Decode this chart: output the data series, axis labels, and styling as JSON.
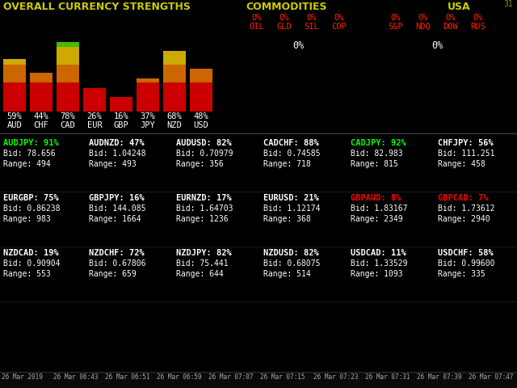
{
  "bg_color": "#000000",
  "title_left": "OVERALL CURRENCY STRENGTHS",
  "title_mid": "COMMODITIES",
  "title_right": "USA",
  "title_color": "#cccc00",
  "bar_currencies": [
    "AUD",
    "CHF",
    "CAD",
    "EUR",
    "GBP",
    "JPY",
    "NZD",
    "USD"
  ],
  "bar_values": [
    59,
    44,
    78,
    26,
    16,
    37,
    68,
    48
  ],
  "commodities_labels": [
    "OIL",
    "GLD",
    "SIL",
    "COP"
  ],
  "usa_labels": [
    "S&P",
    "NDQ",
    "DOW",
    "RUS"
  ],
  "pairs_data": [
    {
      "label": "AUDJPY: 91%",
      "bid": "Bid: 78.656",
      "range": "Range: 494",
      "color": "#00ff00"
    },
    {
      "label": "AUDNZD: 47%",
      "bid": "Bid: 1.04248",
      "range": "Range: 493",
      "color": "#ffffff"
    },
    {
      "label": "AUDUSD: 82%",
      "bid": "Bid: 0.70979",
      "range": "Range: 356",
      "color": "#ffffff"
    },
    {
      "label": "CADCHF: 88%",
      "bid": "Bid: 0.74585",
      "range": "Range: 718",
      "color": "#ffffff"
    },
    {
      "label": "CADJPY: 92%",
      "bid": "Bid: 82.983",
      "range": "Range: 815",
      "color": "#00ff00"
    },
    {
      "label": "CHFJPY: 56%",
      "bid": "Bid: 111.251",
      "range": "Range: 458",
      "color": "#ffffff"
    },
    {
      "label": "EURGBP: 75%",
      "bid": "Bid: 0.86238",
      "range": "Range: 983",
      "color": "#ffffff"
    },
    {
      "label": "GBPJPY: 16%",
      "bid": "Bid: 144.085",
      "range": "Range: 1664",
      "color": "#ffffff"
    },
    {
      "label": "EURNZD: 17%",
      "bid": "Bid: 1.64703",
      "range": "Range: 1236",
      "color": "#ffffff"
    },
    {
      "label": "EURUSD: 21%",
      "bid": "Bid: 1.12174",
      "range": "Range: 368",
      "color": "#ffffff"
    },
    {
      "label": "GBPAUD: 8%",
      "bid": "Bid: 1.83167",
      "range": "Range: 2349",
      "color": "#ff0000"
    },
    {
      "label": "GBPCAD: 7%",
      "bid": "Bid: 1.73612",
      "range": "Range: 2940",
      "color": "#ff0000"
    },
    {
      "label": "NZDCAD: 19%",
      "bid": "Bid: 0.90904",
      "range": "Range: 553",
      "color": "#ffffff"
    },
    {
      "label": "NZDCHF: 72%",
      "bid": "Bid: 0.67806",
      "range": "Range: 659",
      "color": "#ffffff"
    },
    {
      "label": "NZDJPY: 82%",
      "bid": "Bid: 75.441",
      "range": "Range: 644",
      "color": "#ffffff"
    },
    {
      "label": "NZDUSD: 82%",
      "bid": "Bid: 0.68075",
      "range": "Range: 514",
      "color": "#ffffff"
    },
    {
      "label": "USDCAD: 11%",
      "bid": "Bid: 1.33529",
      "range": "Range: 1093",
      "color": "#ffffff"
    },
    {
      "label": "USDCHF: 58%",
      "bid": "Bid: 0.99600",
      "range": "Range: 335",
      "color": "#ffffff"
    }
  ],
  "bottom_times": [
    "26 Mar 2019",
    "26 Mar 06:43",
    "26 Mar 06:51",
    "26 Mar 06:59",
    "26 Mar 07:07",
    "26 Mar 07:15",
    "26 Mar 07:23",
    "26 Mar 07:31",
    "26 Mar 07:39",
    "26 Mar 07:47"
  ],
  "corner_text": "31"
}
